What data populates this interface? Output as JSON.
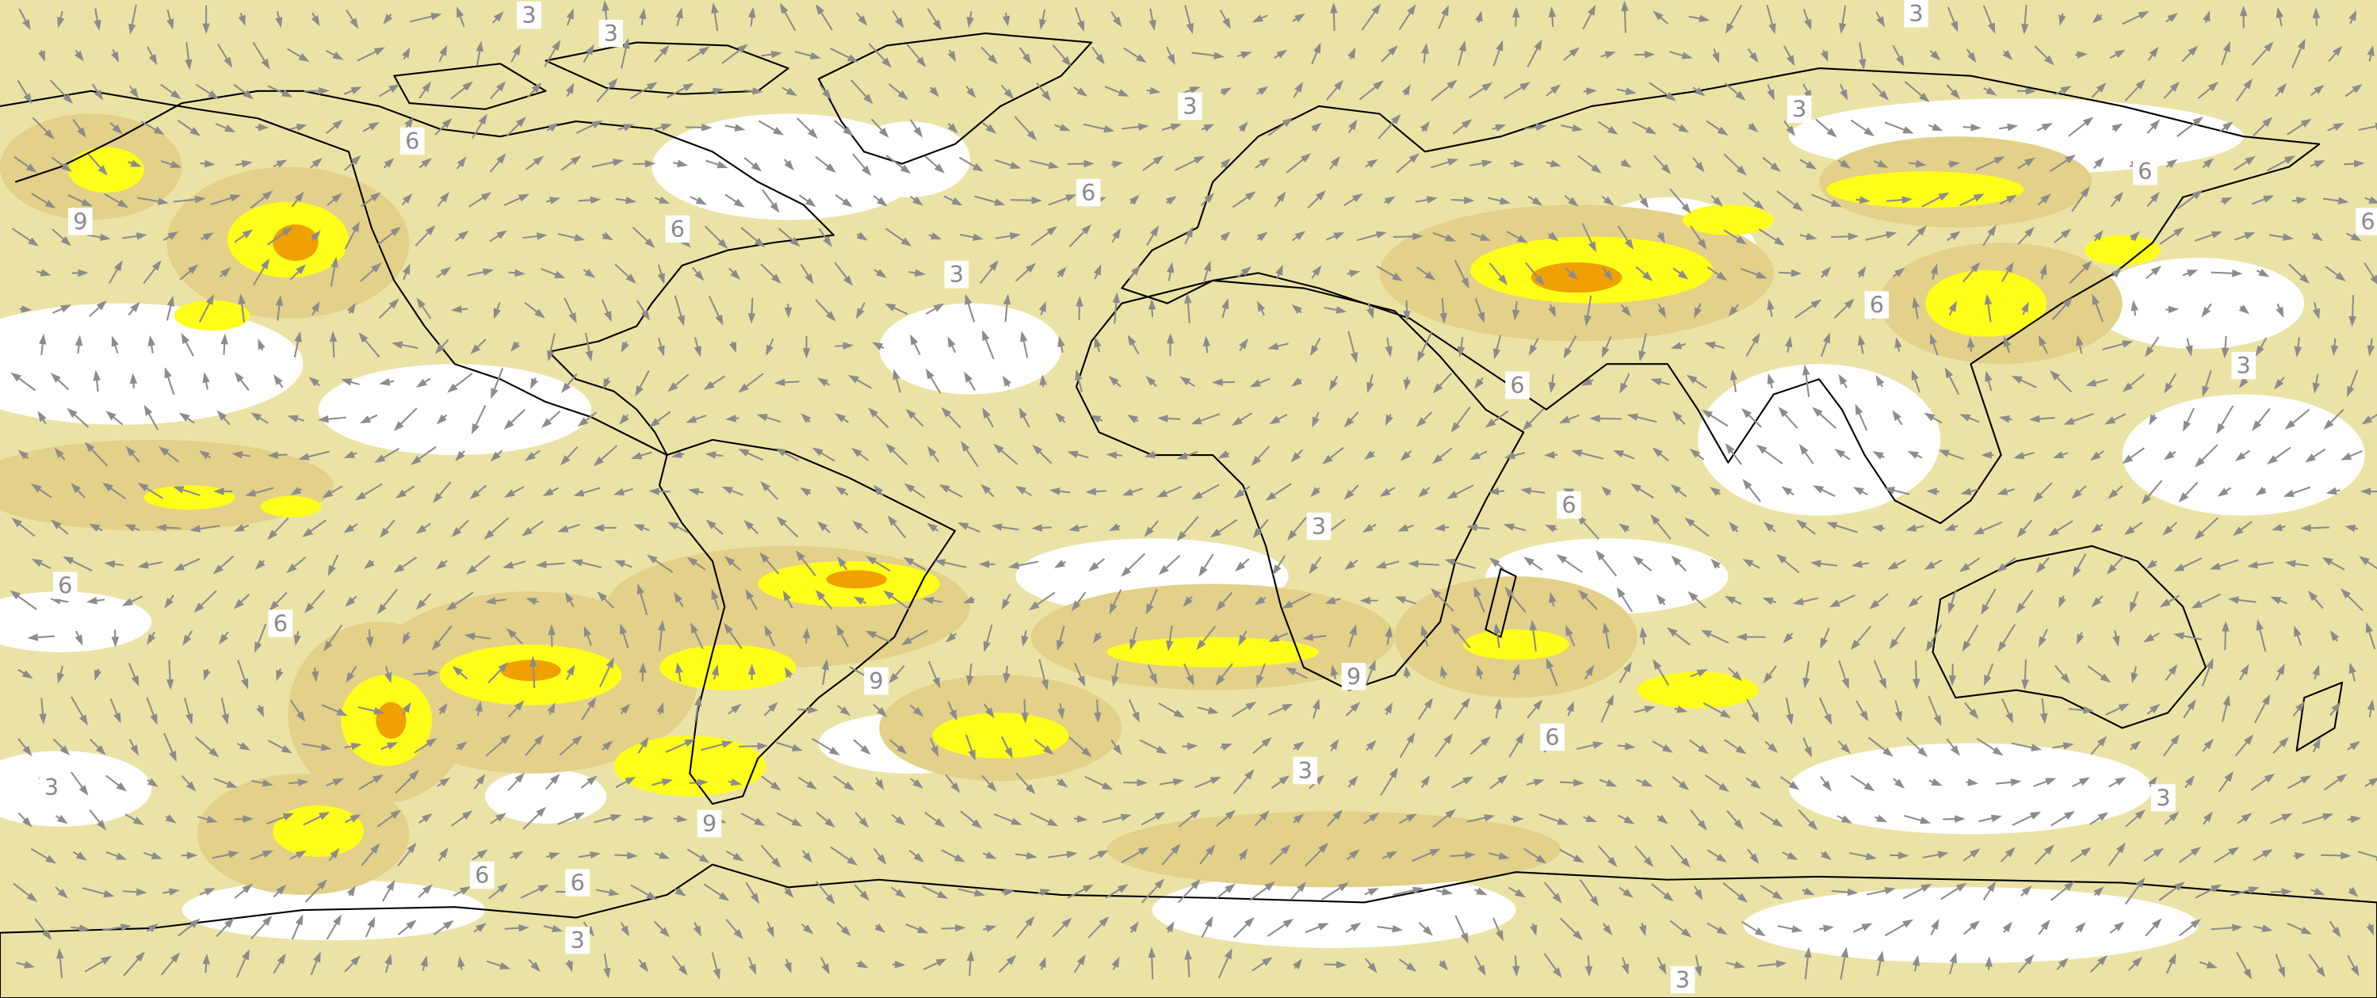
{
  "map": {
    "contour_labels": [
      3,
      3,
      3,
      3,
      3,
      6,
      6,
      6,
      9,
      6,
      3,
      6,
      6,
      3,
      6,
      6,
      3,
      6,
      6,
      9,
      9,
      6,
      3,
      3,
      3,
      9,
      6,
      6,
      3,
      3
    ]
  }
}
